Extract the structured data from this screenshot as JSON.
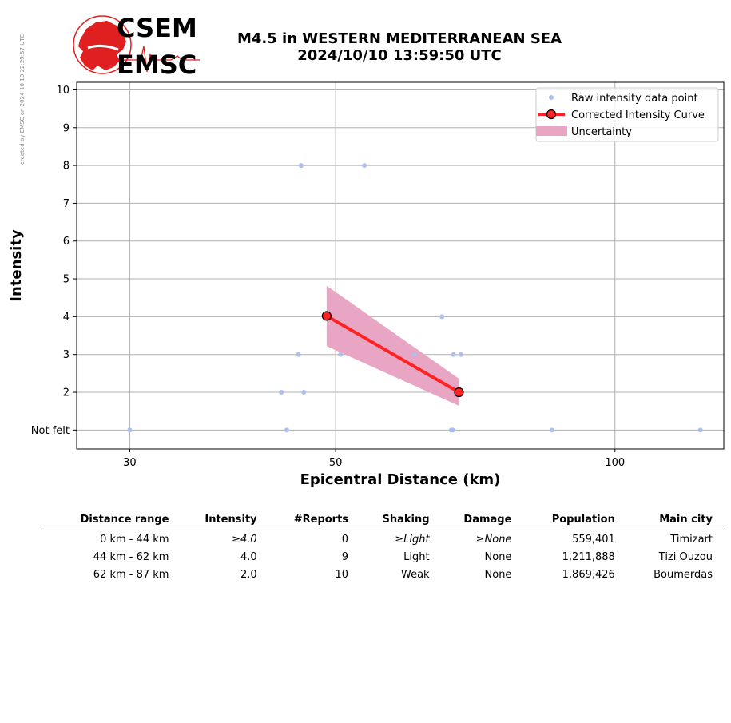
{
  "credit": "created by EMSC on 2024-10-10 22:29:57 UTC",
  "logo": {
    "top_text": "CSEM",
    "bottom_text": "EMSC"
  },
  "title": {
    "line1": "M4.5 in WESTERN MEDITERRANEAN SEA",
    "line2": "2024/10/10 13:59:50 UTC"
  },
  "colors": {
    "raw": "#aebfea",
    "curve": "#ff2222",
    "uncertainty": "#e8a6c4",
    "grid": "#b0b0b0",
    "logo_red": "#e02020"
  },
  "chart_data": {
    "type": "scatter",
    "xlabel": "Epicentral Distance (km)",
    "ylabel": "Intensity",
    "x_scale": "log",
    "xlim": [
      26.3,
      131
    ],
    "ylim": [
      0.5,
      10.2
    ],
    "x_ticks": [
      30,
      50,
      100
    ],
    "x_tick_labels": [
      "30",
      "50",
      "100"
    ],
    "y_ticks": [
      1,
      2,
      3,
      4,
      5,
      6,
      7,
      8,
      9,
      10
    ],
    "y_tick_labels": [
      "Not felt",
      "2",
      "3",
      "4",
      "5",
      "6",
      "7",
      "8",
      "9",
      "10"
    ],
    "grid": true,
    "legend_position": "top-right",
    "series": [
      {
        "name": "Raw intensity data point",
        "kind": "points",
        "points": [
          [
            30.0,
            1
          ],
          [
            44.3,
            1
          ],
          [
            66.6,
            1
          ],
          [
            66.9,
            1
          ],
          [
            85.5,
            1
          ],
          [
            123.6,
            1
          ],
          [
            43.7,
            2
          ],
          [
            46.2,
            2
          ],
          [
            45.6,
            3
          ],
          [
            50.6,
            3
          ],
          [
            60.8,
            3
          ],
          [
            67.0,
            3
          ],
          [
            68.2,
            3
          ],
          [
            65.1,
            4
          ],
          [
            45.9,
            8
          ],
          [
            53.7,
            8
          ]
        ]
      },
      {
        "name": "Corrected Intensity Curve",
        "kind": "line",
        "points": [
          [
            48.9,
            4.02
          ],
          [
            67.9,
            2.0
          ]
        ]
      },
      {
        "name": "Uncertainty",
        "kind": "band",
        "x": [
          48.9,
          67.9
        ],
        "upper": [
          4.82,
          2.36
        ],
        "lower": [
          3.22,
          1.64
        ]
      }
    ]
  },
  "table": {
    "headers": [
      "Distance range",
      "Intensity",
      "#Reports",
      "Shaking",
      "Damage",
      "Population",
      "Main city"
    ],
    "rows": [
      [
        "0 km -   44 km",
        "≥4.0",
        "0",
        "≥Light",
        "≥None",
        "559,401",
        "Timizart"
      ],
      [
        "44 km -   62 km",
        "4.0",
        "9",
        "Light",
        "None",
        "1,211,888",
        "Tizi Ouzou"
      ],
      [
        "62 km -   87 km",
        "2.0",
        "10",
        "Weak",
        "None",
        "1,869,426",
        "Boumerdas"
      ]
    ]
  }
}
